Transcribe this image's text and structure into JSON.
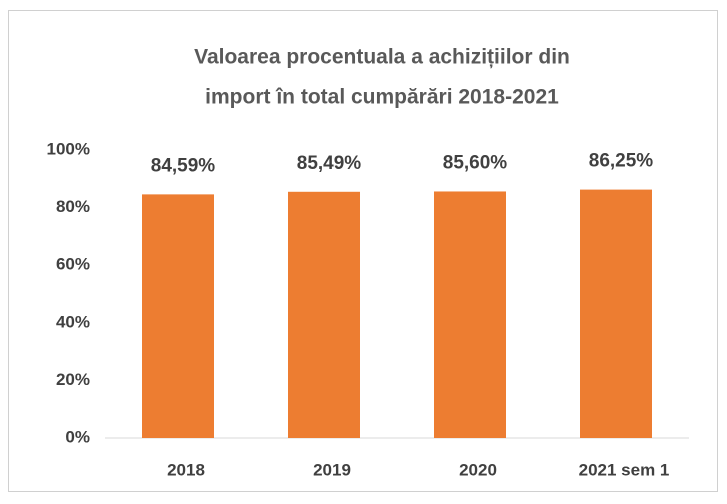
{
  "chart_data": {
    "type": "bar",
    "title": [
      "Valoarea procentuala a achizițiilor  din",
      "import în total cumpărări 2018-2021"
    ],
    "categories": [
      "2018",
      "2019",
      "2020",
      "2021 sem 1"
    ],
    "values": [
      84.59,
      85.49,
      85.6,
      86.25
    ],
    "value_labels": [
      "84,59%",
      "85,49%",
      "85,60%",
      "86,25%"
    ],
    "color": "#ed7d31",
    "ylim": [
      0,
      100
    ],
    "yticks": [
      {
        "value": 0,
        "label": "0%"
      },
      {
        "value": 20,
        "label": "20%"
      },
      {
        "value": 40,
        "label": "40%"
      },
      {
        "value": 60,
        "label": "60%"
      },
      {
        "value": 80,
        "label": "80%"
      },
      {
        "value": 100,
        "label": "100%"
      }
    ],
    "grid": false
  }
}
